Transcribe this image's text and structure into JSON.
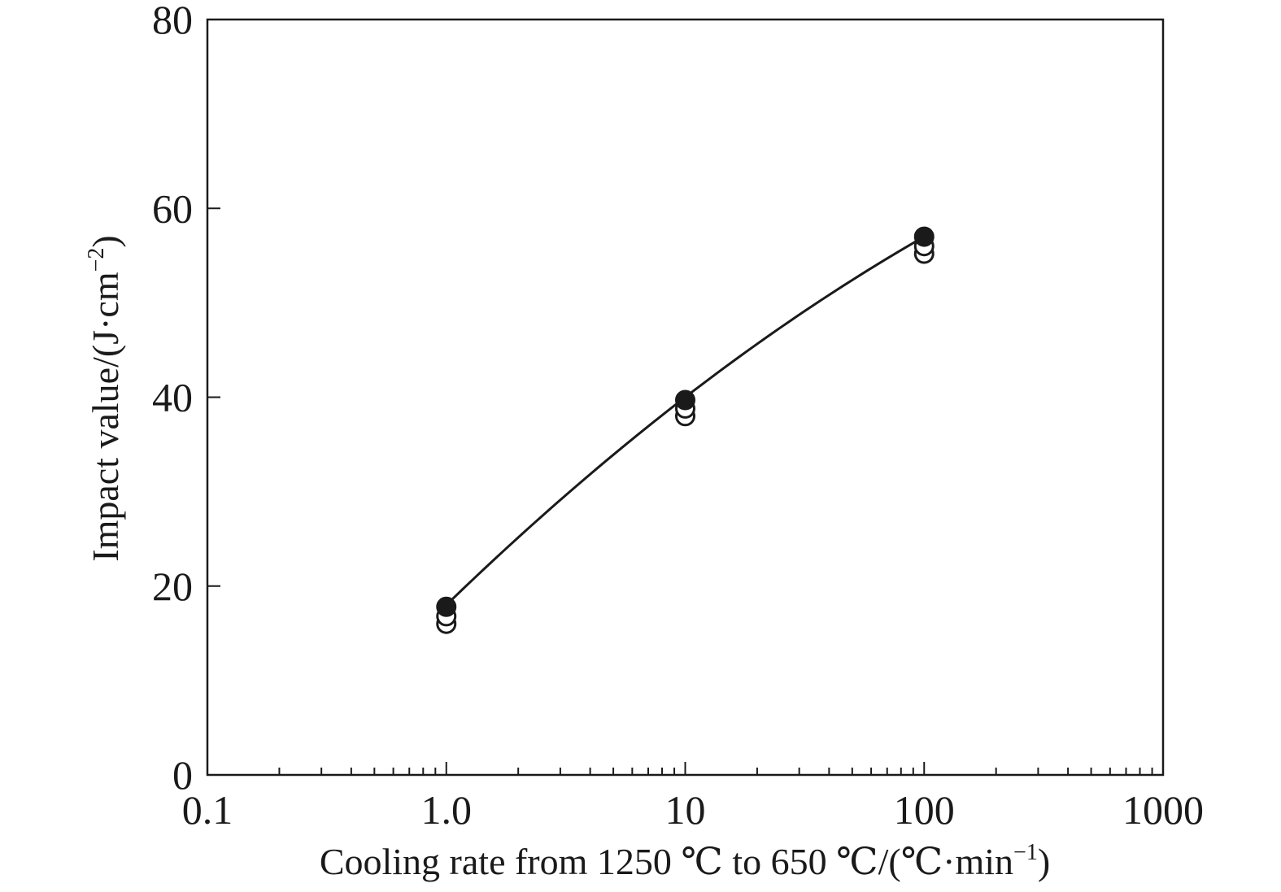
{
  "chart_data": {
    "type": "scatter",
    "xscale": "log",
    "xlim": [
      0.1,
      1000
    ],
    "ylim": [
      0,
      80
    ],
    "xticks": [
      0.1,
      1,
      10,
      100,
      1000
    ],
    "xtick_labels": [
      "0.1",
      "1.0",
      "10",
      "100",
      "1000"
    ],
    "yticks": [
      0,
      20,
      40,
      60,
      80
    ],
    "ytick_labels": [
      "0",
      "20",
      "40",
      "60",
      "80"
    ],
    "xlabel": {
      "main": "Cooling rate from 1250 ℃ to 650 ℃/(℃·min",
      "sup": "−1",
      "close": ")"
    },
    "ylabel": {
      "main": "Impact value/(J·cm",
      "sup": "−2",
      "close": ")"
    },
    "grid": false,
    "legend": "none",
    "points": [
      {
        "x": 1,
        "y": 16,
        "style": "open"
      },
      {
        "x": 1,
        "y": 16.8,
        "style": "open"
      },
      {
        "x": 1,
        "y": 17.8,
        "style": "filled"
      },
      {
        "x": 10,
        "y": 38,
        "style": "open"
      },
      {
        "x": 10,
        "y": 38.8,
        "style": "open"
      },
      {
        "x": 10,
        "y": 39.7,
        "style": "filled"
      },
      {
        "x": 100,
        "y": 55.2,
        "style": "open"
      },
      {
        "x": 100,
        "y": 56,
        "style": "open"
      },
      {
        "x": 100,
        "y": 57,
        "style": "filled"
      }
    ],
    "fit_curve": [
      {
        "x": 1,
        "y": 18
      },
      {
        "x": 10,
        "y": 40
      },
      {
        "x": 100,
        "y": 57
      }
    ],
    "colors": {
      "axis": "#1a1a1a",
      "marker": "#1a1a1a",
      "curve": "#1a1a1a"
    }
  }
}
